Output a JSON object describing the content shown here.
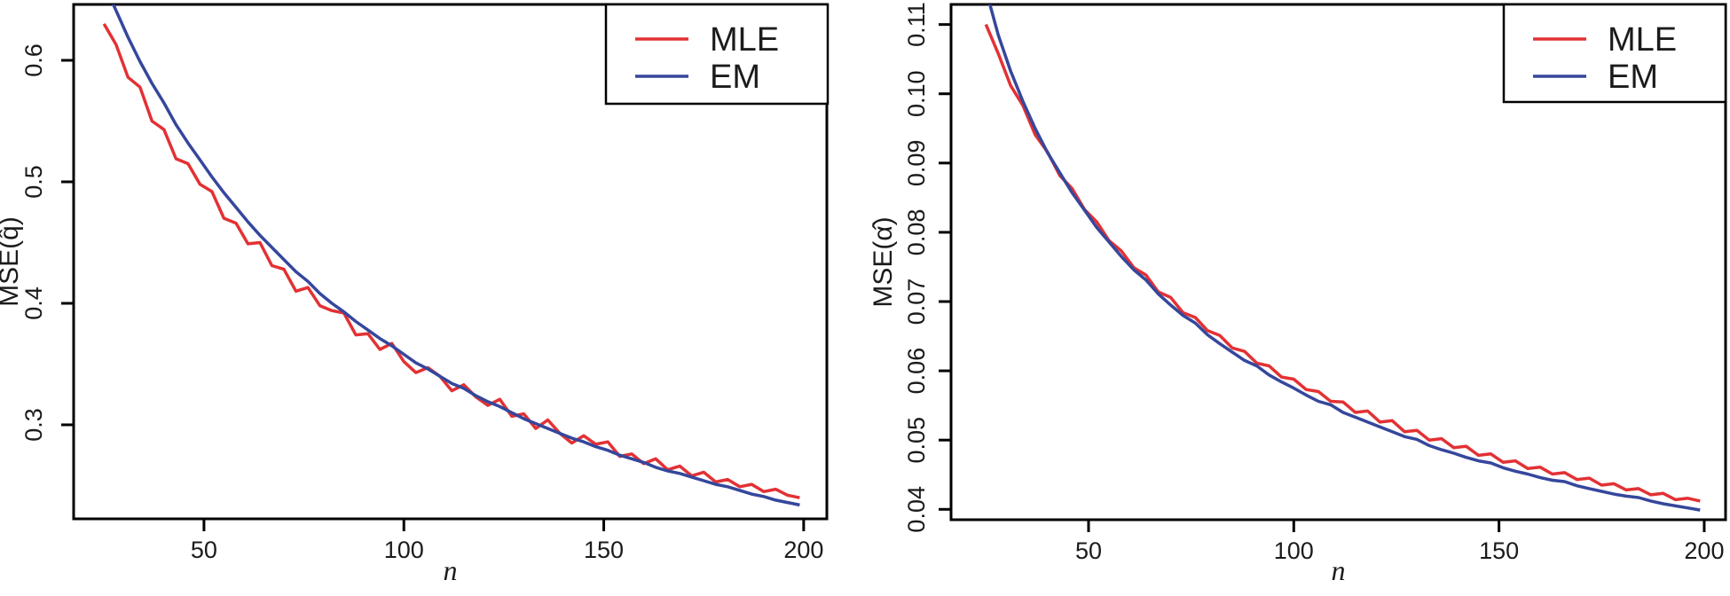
{
  "figure": {
    "background": "#ffffff",
    "axis_color": "#000000",
    "text_color": "#1b1b1b"
  },
  "legend": {
    "entries": [
      {
        "label": "MLE",
        "color": "#e33134"
      },
      {
        "label": "EM",
        "color": "#35479c"
      }
    ]
  },
  "chart_data": [
    {
      "type": "line",
      "panel": "left",
      "title": "",
      "xlabel": "n",
      "ylabel": "MSE(q̂)",
      "legend_position": "topright",
      "grid": false,
      "xlim": [
        17.4,
        205.8
      ],
      "ylim": [
        0.2226,
        0.646
      ],
      "xticks": [
        50,
        100,
        150,
        200
      ],
      "xtick_labels": [
        "50",
        "100",
        "150",
        "200"
      ],
      "yticks": [
        0.6,
        0.5,
        0.4,
        0.3
      ],
      "ytick_labels": [
        "0.6",
        "0.5",
        "0.4",
        "0.3"
      ],
      "x": [
        25,
        28,
        31,
        34,
        37,
        40,
        43,
        46,
        49,
        52,
        55,
        58,
        61,
        64,
        67,
        70,
        73,
        76,
        79,
        82,
        85,
        88,
        91,
        94,
        97,
        100,
        103,
        106,
        109,
        112,
        115,
        118,
        121,
        124,
        127,
        130,
        133,
        136,
        139,
        142,
        145,
        148,
        151,
        154,
        157,
        160,
        163,
        166,
        169,
        172,
        175,
        178,
        181,
        184,
        187,
        190,
        193,
        196,
        199
      ],
      "series": [
        {
          "name": "MLE",
          "color": "#e33134",
          "values": [
            0.63,
            0.613,
            0.586,
            0.578,
            0.55,
            0.543,
            0.519,
            0.515,
            0.498,
            0.492,
            0.47,
            0.466,
            0.449,
            0.45,
            0.431,
            0.428,
            0.41,
            0.413,
            0.398,
            0.394,
            0.392,
            0.374,
            0.375,
            0.362,
            0.367,
            0.352,
            0.343,
            0.347,
            0.34,
            0.328,
            0.333,
            0.323,
            0.316,
            0.321,
            0.307,
            0.309,
            0.297,
            0.304,
            0.293,
            0.285,
            0.291,
            0.284,
            0.286,
            0.274,
            0.276,
            0.268,
            0.272,
            0.263,
            0.266,
            0.258,
            0.261,
            0.253,
            0.255,
            0.249,
            0.251,
            0.245,
            0.247,
            0.242,
            0.24
          ]
        },
        {
          "name": "EM",
          "color": "#35479c",
          "values": [
            0.663,
            0.641,
            0.619,
            0.599,
            0.581,
            0.565,
            0.547,
            0.532,
            0.518,
            0.504,
            0.491,
            0.479,
            0.467,
            0.456,
            0.446,
            0.436,
            0.426,
            0.418,
            0.408,
            0.4,
            0.393,
            0.385,
            0.378,
            0.371,
            0.365,
            0.358,
            0.351,
            0.346,
            0.34,
            0.334,
            0.33,
            0.324,
            0.319,
            0.315,
            0.31,
            0.305,
            0.301,
            0.297,
            0.293,
            0.289,
            0.286,
            0.282,
            0.279,
            0.275,
            0.272,
            0.269,
            0.265,
            0.262,
            0.26,
            0.257,
            0.254,
            0.251,
            0.249,
            0.246,
            0.243,
            0.241,
            0.238,
            0.236,
            0.234
          ]
        }
      ]
    },
    {
      "type": "line",
      "panel": "right",
      "title": "",
      "xlabel": "n",
      "ylabel": "MSE(α̂)",
      "legend_position": "topright",
      "grid": false,
      "xlim": [
        16.5,
        205.2
      ],
      "ylim": [
        0.0385,
        0.1129
      ],
      "xticks": [
        50,
        100,
        150,
        200
      ],
      "xtick_labels": [
        "50",
        "100",
        "150",
        "200"
      ],
      "yticks": [
        0.11,
        0.1,
        0.09,
        0.08,
        0.07,
        0.06,
        0.05,
        0.04
      ],
      "ytick_labels": [
        "0.11",
        "0.10",
        "0.09",
        "0.08",
        "0.07",
        "0.06",
        "0.05",
        "0.04"
      ],
      "x": [
        25,
        28,
        31,
        34,
        37,
        40,
        43,
        46,
        49,
        52,
        55,
        58,
        61,
        64,
        67,
        70,
        73,
        76,
        79,
        82,
        85,
        88,
        91,
        94,
        97,
        100,
        103,
        106,
        109,
        112,
        115,
        118,
        121,
        124,
        127,
        130,
        133,
        136,
        139,
        142,
        145,
        148,
        151,
        154,
        157,
        160,
        163,
        166,
        169,
        172,
        175,
        178,
        181,
        184,
        187,
        190,
        193,
        196,
        199
      ],
      "series": [
        {
          "name": "MLE",
          "color": "#e33134",
          "values": [
            0.11,
            0.1058,
            0.1012,
            0.0983,
            0.0941,
            0.0916,
            0.0882,
            0.0863,
            0.0833,
            0.0815,
            0.0788,
            0.0773,
            0.0749,
            0.0738,
            0.0714,
            0.0706,
            0.0684,
            0.0677,
            0.0658,
            0.0651,
            0.0633,
            0.0628,
            0.0611,
            0.0607,
            0.0591,
            0.0588,
            0.0573,
            0.057,
            0.0556,
            0.0555,
            0.054,
            0.0542,
            0.0526,
            0.0528,
            0.0512,
            0.0514,
            0.05,
            0.0502,
            0.0489,
            0.0491,
            0.0478,
            0.048,
            0.0468,
            0.047,
            0.0459,
            0.0461,
            0.0451,
            0.0453,
            0.0443,
            0.0445,
            0.0435,
            0.0437,
            0.0428,
            0.043,
            0.0421,
            0.0423,
            0.0414,
            0.0416,
            0.0412
          ]
        },
        {
          "name": "EM",
          "color": "#35479c",
          "values": [
            0.115,
            0.1085,
            0.1033,
            0.0989,
            0.095,
            0.0915,
            0.0886,
            0.0857,
            0.0832,
            0.0807,
            0.0786,
            0.0765,
            0.0746,
            0.0731,
            0.0711,
            0.0695,
            0.068,
            0.0669,
            0.0652,
            0.0639,
            0.0627,
            0.0615,
            0.0607,
            0.0594,
            0.0584,
            0.0575,
            0.0565,
            0.0556,
            0.0551,
            0.054,
            0.0533,
            0.0526,
            0.0519,
            0.0512,
            0.0505,
            0.0501,
            0.0492,
            0.0486,
            0.0481,
            0.0475,
            0.047,
            0.0467,
            0.046,
            0.0455,
            0.0451,
            0.0446,
            0.0442,
            0.044,
            0.0434,
            0.043,
            0.0426,
            0.0422,
            0.0419,
            0.0417,
            0.0412,
            0.0408,
            0.0405,
            0.0402,
            0.0399
          ]
        }
      ]
    }
  ]
}
